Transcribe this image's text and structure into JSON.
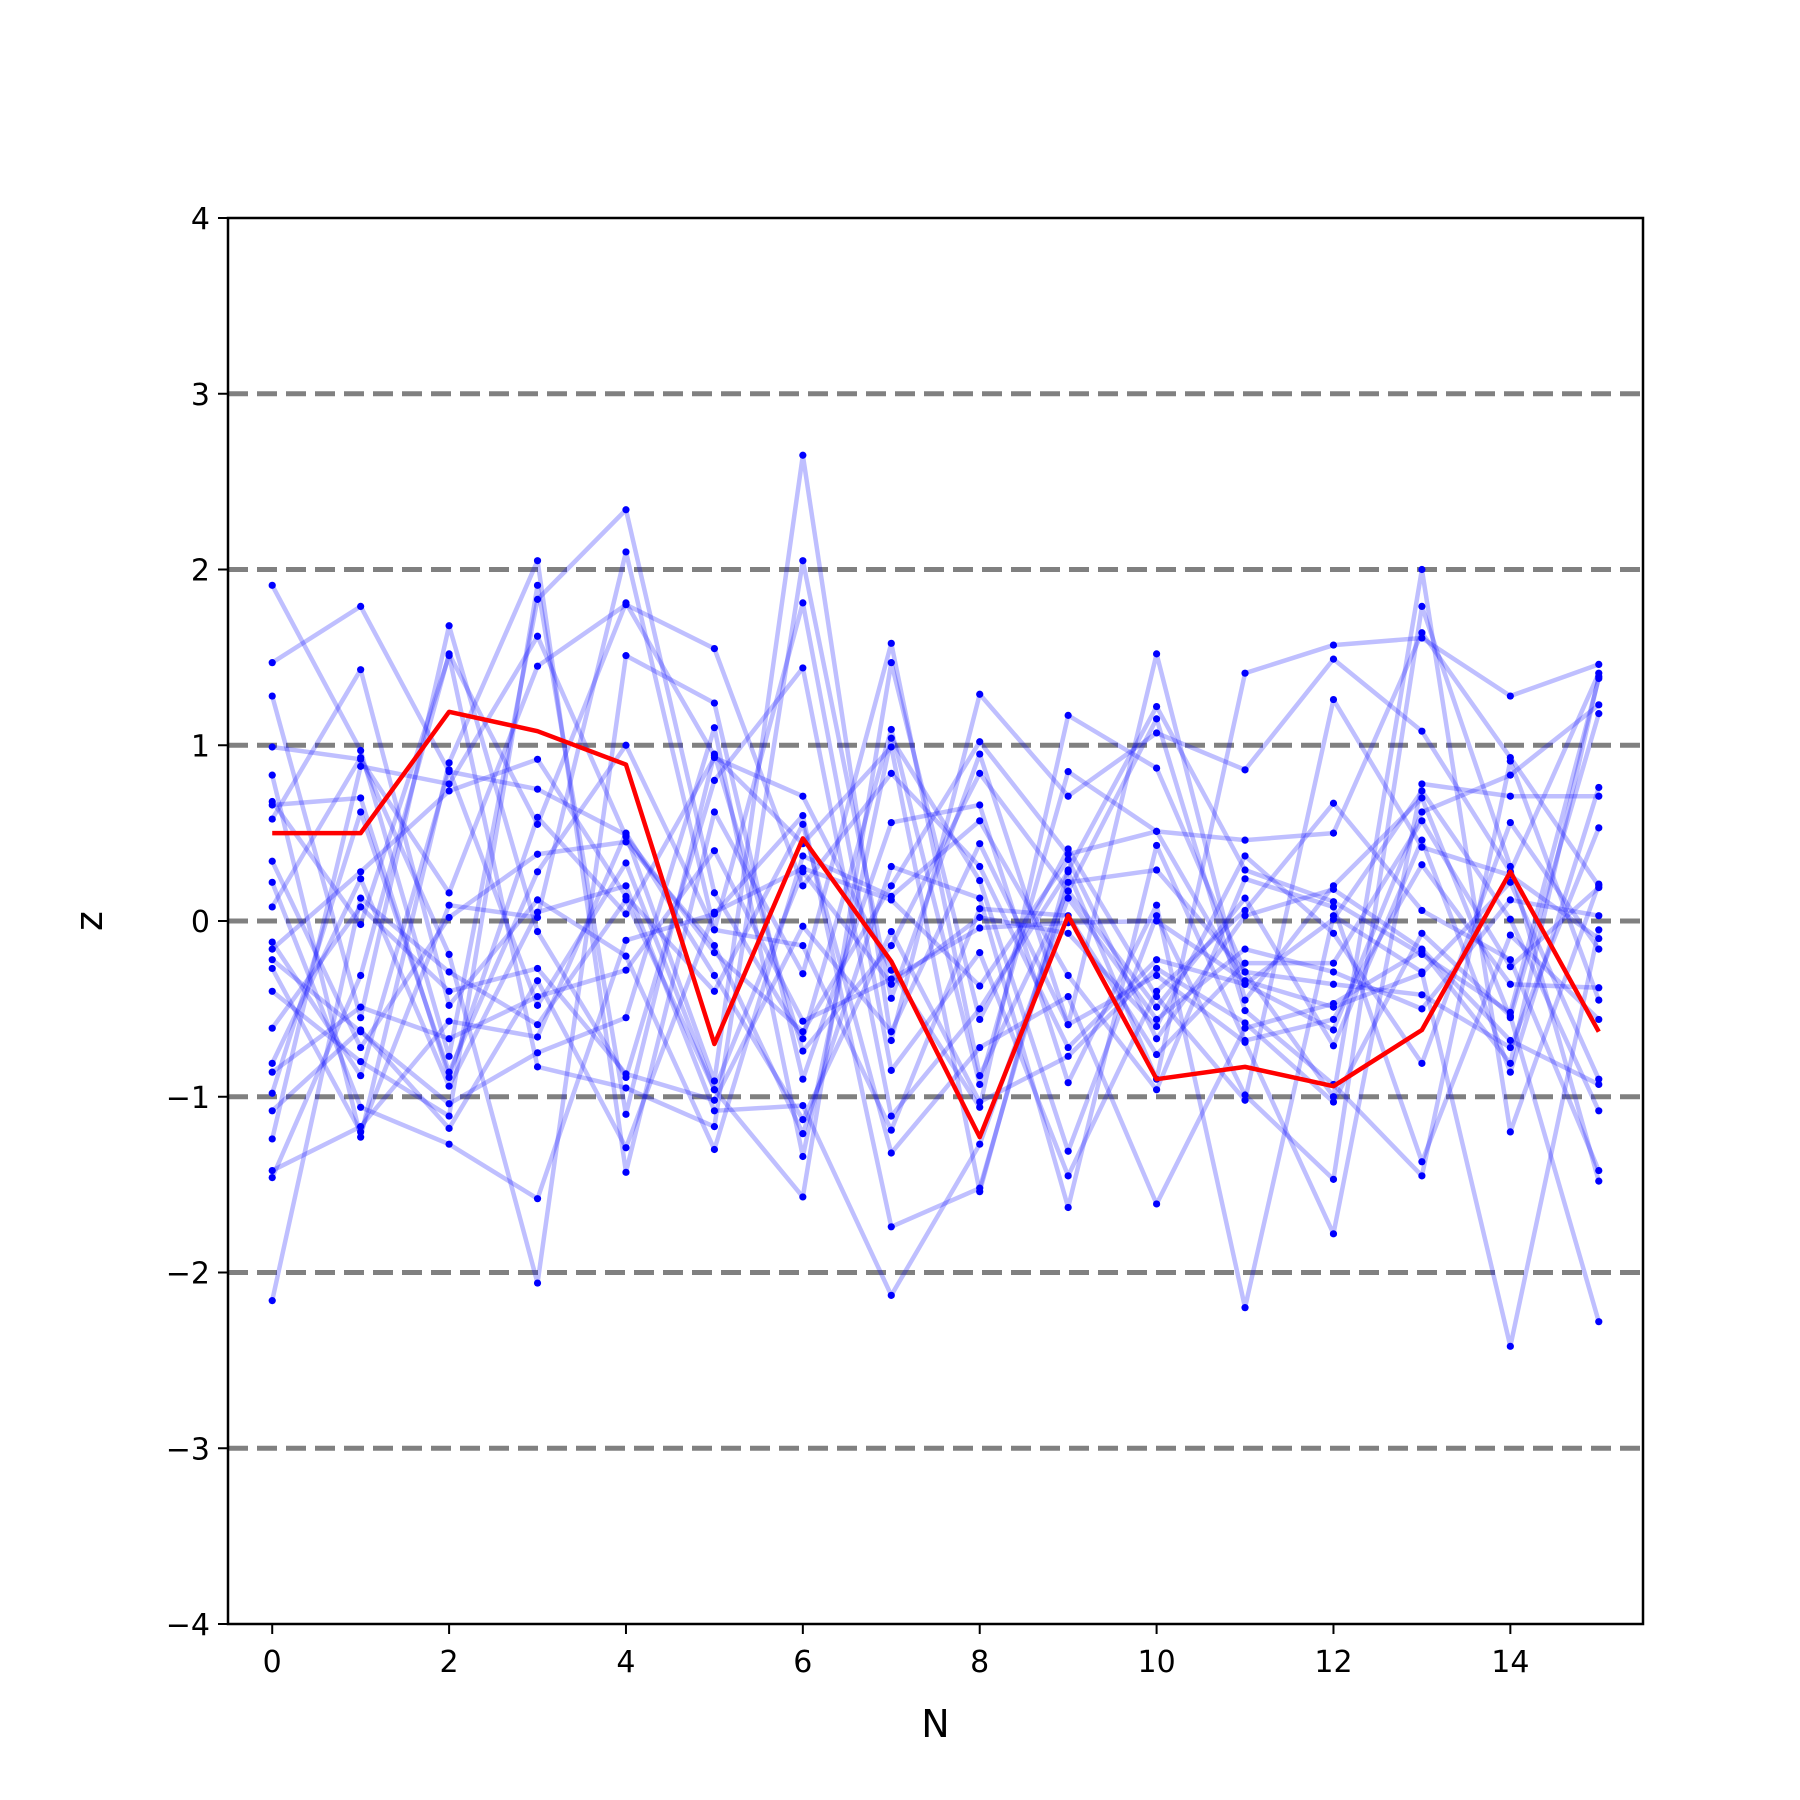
{
  "chart_data": {
    "type": "line",
    "title": "",
    "xlabel": "N",
    "ylabel": "z",
    "xlim": [
      -0.5,
      15.5
    ],
    "ylim": [
      -4,
      4
    ],
    "xticks": [
      0,
      2,
      4,
      6,
      8,
      10,
      12,
      14
    ],
    "yticks": [
      -4,
      -3,
      -2,
      -1,
      0,
      1,
      2,
      3,
      4
    ],
    "ytick_labels": [
      "−4",
      "−3",
      "−2",
      "−1",
      "0",
      "1",
      "2",
      "3",
      "4"
    ],
    "reference_lines": [
      -3,
      -2,
      -1,
      0,
      1,
      2,
      3
    ],
    "grid": false,
    "colors": {
      "background_series": "#0000ff",
      "highlight_series": "#ff0000",
      "reference_lines": "#808080",
      "axes": "#000000"
    },
    "x": [
      0,
      1,
      2,
      3,
      4,
      5,
      6,
      7,
      8,
      9,
      10,
      11,
      12,
      13,
      14,
      15
    ],
    "highlight": {
      "values": [
        0.5,
        0.5,
        1.19,
        1.08,
        0.89,
        -0.7,
        0.47,
        -0.23,
        -1.23,
        0.03,
        -0.9,
        -0.83,
        -0.94,
        -0.62,
        0.28,
        -0.63
      ]
    },
    "series": [
      {
        "values": [
          1.91,
          0.97,
          -0.77,
          1.83,
          2.34,
          0.16,
          -0.67,
          1.09,
          -0.93,
          0.85,
          0.51,
          0.46,
          0.5,
          1.64,
          0.93,
          0.2
        ]
      },
      {
        "values": [
          1.47,
          1.79,
          0.85,
          0.75,
          0.49,
          -0.91,
          2.65,
          -0.68,
          1.29,
          0.71,
          1.07,
          0.86,
          1.49,
          1.08,
          0.28,
          1.41
        ]
      },
      {
        "values": [
          1.28,
          -0.55,
          1.68,
          -0.06,
          -0.89,
          0.8,
          1.44,
          -1.11,
          -0.5,
          0.28,
          -0.9,
          1.41,
          1.57,
          1.61,
          1.28,
          1.46
        ]
      },
      {
        "values": [
          0.99,
          0.92,
          0.16,
          1.45,
          1.8,
          1.55,
          0.2,
          0.84,
          0.31,
          -0.72,
          -0.22,
          -0.36,
          -0.62,
          0.62,
          0.83,
          1.23
        ]
      },
      {
        "values": [
          0.83,
          -1.23,
          0.9,
          2.05,
          -1.43,
          0.62,
          -0.3,
          1.58,
          -0.88,
          0.17,
          -0.49,
          0.13,
          -0.71,
          0.46,
          -0.86,
          0.76
        ]
      },
      {
        "values": [
          0.68,
          -0.02,
          1.51,
          -0.83,
          -0.95,
          -1.17,
          2.05,
          -0.44,
          0.95,
          -0.59,
          1.52,
          -0.45,
          0.2,
          0.7,
          -0.55,
          1.18
        ]
      },
      {
        "values": [
          0.66,
          0.7,
          -0.89,
          0.59,
          0.04,
          0.93,
          0.71,
          -0.28,
          -1.06,
          1.17,
          0.87,
          -0.29,
          -0.36,
          -0.42,
          -0.72,
          0.53
        ]
      },
      {
        "values": [
          0.58,
          1.43,
          -0.48,
          0.12,
          -0.2,
          -1.3,
          0.37,
          0.14,
          0.57,
          -0.31,
          -0.96,
          0.24,
          0.08,
          -1.37,
          -0.08,
          -0.56
        ]
      },
      {
        "values": [
          0.34,
          -0.72,
          0.02,
          0.38,
          0.45,
          -0.14,
          -1.21,
          0.31,
          0.13,
          -1.63,
          0.43,
          -0.68,
          -0.56,
          0.32,
          -0.36,
          -0.38
        ]
      },
      {
        "values": [
          0.22,
          -1.06,
          -1.27,
          -1.58,
          -0.11,
          0.04,
          0.6,
          -1.74,
          -1.52,
          0.22,
          0.29,
          -0.29,
          -1.0,
          2.0,
          -1.2,
          0.21
        ]
      },
      {
        "values": [
          0.08,
          0.93,
          -0.19,
          -2.06,
          1.51,
          1.24,
          -0.9,
          0.56,
          0.66,
          -0.92,
          0.09,
          -2.2,
          0.03,
          -0.29,
          -2.42,
          -0.05
        ]
      },
      {
        "values": [
          -0.12,
          -0.88,
          0.86,
          -0.48,
          0.33,
          -0.96,
          -1.57,
          1.47,
          -0.56,
          0.41,
          -0.43,
          -1.02,
          1.26,
          0.42,
          0.26,
          -0.1
        ]
      },
      {
        "values": [
          -0.16,
          0.28,
          0.74,
          0.92,
          0.14,
          -0.4,
          0.55,
          -1.32,
          -0.72,
          -0.43,
          -1.61,
          -0.61,
          -0.47,
          -0.17,
          -0.81,
          1.39
        ]
      },
      {
        "values": [
          -0.22,
          -0.63,
          -1.04,
          -0.75,
          -0.55,
          1.1,
          -1.34,
          1.04,
          0.23,
          -1.31,
          0.03,
          -0.99,
          -1.47,
          1.79,
          0.31,
          -1.48
        ]
      },
      {
        "values": [
          -0.27,
          -1.2,
          0.09,
          0.02,
          2.1,
          -0.05,
          1.81,
          -0.85,
          -0.18,
          -1.45,
          -0.4,
          0.06,
          0.67,
          0.06,
          -0.22,
          -1.42
        ]
      },
      {
        "values": [
          -0.4,
          -0.8,
          -1.11,
          1.91,
          -1.1,
          0.95,
          -0.74,
          -0.14,
          0.84,
          0.17,
          1.15,
          -0.51,
          -0.93,
          -1.45,
          0.91,
          -0.45
        ]
      },
      {
        "values": [
          -0.61,
          0.08,
          -0.4,
          -0.27,
          -0.87,
          -1.02,
          -0.03,
          -0.63,
          0.44,
          -0.59,
          -0.31,
          -0.69,
          -1.78,
          0.78,
          0.71,
          0.71
        ]
      },
      {
        "values": [
          -0.81,
          0.24,
          -0.94,
          0.05,
          0.2,
          -1.08,
          -1.05,
          -2.13,
          -1.27,
          0.13,
          -0.56,
          -0.16,
          -0.29,
          -0.5,
          0.12,
          0.03
        ]
      },
      {
        "values": [
          -0.86,
          -0.49,
          -0.67,
          -0.43,
          -0.28,
          0.4,
          -0.57,
          -0.33,
          -0.04,
          -0.01,
          0.0,
          -0.34,
          -0.49,
          -0.3,
          0.22,
          -0.9
        ]
      },
      {
        "values": [
          -0.98,
          0.62,
          -0.86,
          0.28,
          1.0,
          -0.05,
          -0.14,
          -1.19,
          0.07,
          0.03,
          -0.76,
          -0.24,
          -0.24,
          0.57,
          -0.26,
          0.19
        ]
      },
      {
        "values": [
          -1.08,
          -0.62,
          -1.18,
          -0.34,
          -1.29,
          0.05,
          0.3,
          0.12,
          -0.37,
          0.35,
          -0.67,
          0.03,
          0.18,
          -0.16,
          -0.68,
          -0.93
        ]
      },
      {
        "values": [
          -1.24,
          0.88,
          0.78,
          1.62,
          0.48,
          -0.18,
          -0.63,
          0.2,
          1.02,
          0.38,
          0.51,
          -0.36,
          0.01,
          0.74,
          0.01,
          -1.08
        ]
      },
      {
        "values": [
          -1.42,
          -1.17,
          -0.57,
          -0.66,
          0.5,
          -0.31,
          -1.13,
          -0.06,
          -1.03,
          -0.77,
          -0.27,
          -0.58,
          -1.03,
          -0.07,
          -0.54,
          -2.28
        ]
      },
      {
        "values": [
          -1.46,
          -0.31,
          1.52,
          0.55,
          1.81,
          0.94,
          0.44,
          0.99,
          -1.54,
          0.29,
          1.22,
          0.29,
          0.11,
          -0.19,
          -0.52,
          1.38
        ]
      },
      {
        "values": [
          -2.16,
          0.13,
          -0.29,
          -0.59,
          0.12,
          -0.96,
          0.28,
          -0.36,
          0.02,
          -0.07,
          -0.6,
          0.37,
          -0.07,
          -0.81,
          0.56,
          -0.16
        ]
      }
    ]
  }
}
